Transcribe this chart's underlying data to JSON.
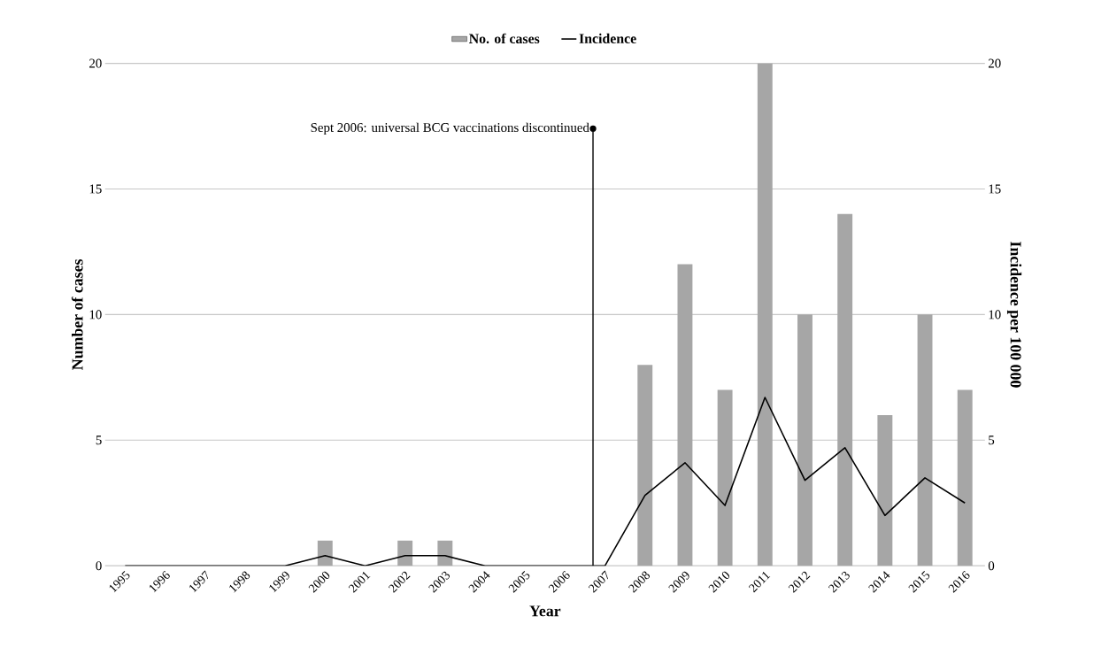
{
  "chart_data": {
    "type": "bar",
    "x": [
      1995,
      1996,
      1997,
      1998,
      1999,
      2000,
      2001,
      2002,
      2003,
      2004,
      2005,
      2006,
      2007,
      2008,
      2009,
      2010,
      2011,
      2012,
      2013,
      2014,
      2015,
      2016
    ],
    "series": [
      {
        "name": "No. of cases",
        "color": "#a6a6a6",
        "values": [
          0,
          0,
          0,
          0,
          0,
          1,
          0,
          1,
          1,
          0,
          0,
          0,
          0,
          8,
          12,
          7,
          20,
          10,
          14,
          6,
          10,
          7
        ]
      },
      {
        "name": "Incidence",
        "type": "line",
        "axis": "y2",
        "color": "#000000",
        "values": [
          0,
          0,
          0,
          0,
          0,
          0.4,
          0,
          0.4,
          0.4,
          0,
          0,
          0,
          0,
          2.8,
          4.1,
          2.4,
          6.7,
          3.4,
          4.7,
          2.0,
          3.5,
          2.5
        ]
      }
    ],
    "xlim": [
      1994.5,
      2016.5
    ],
    "xticks": [
      1995,
      1996,
      1997,
      1998,
      1999,
      2000,
      2001,
      2002,
      2003,
      2004,
      2005,
      2006,
      2007,
      2008,
      2009,
      2010,
      2011,
      2012,
      2013,
      2014,
      2015,
      2016
    ],
    "ylim": [
      0,
      20
    ],
    "yticks": [
      0,
      5,
      10,
      15,
      20
    ],
    "y2lim": [
      0,
      20
    ],
    "y2ticks": [
      0,
      5,
      10,
      15,
      20
    ],
    "xlabel": "Year",
    "ylabel": "Number of cases",
    "y2label": "Incidence per 100 000",
    "ref_lines": [
      {
        "axis": "x",
        "value": 2006.7,
        "label": "Sept 2006: universal BCG vaccinations discontinued",
        "color": "#000000"
      }
    ],
    "grid": "y",
    "legend": "top"
  }
}
